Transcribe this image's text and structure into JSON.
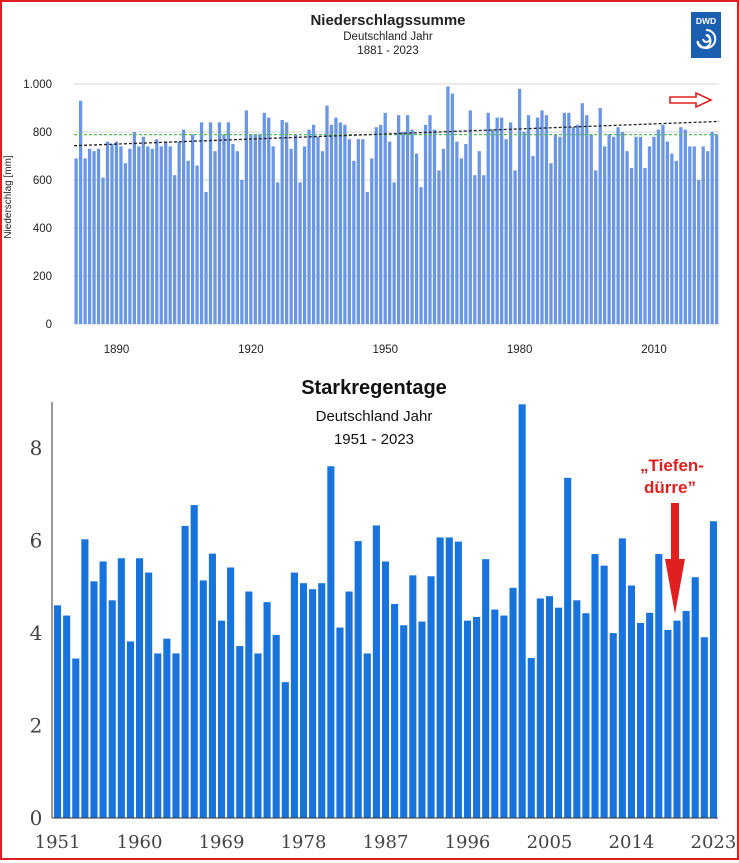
{
  "colors": {
    "top_bar": "#6a96e8",
    "bottom_bar": "#1874dc",
    "trend_dark": "#222222",
    "trend_green": "#5cb85c",
    "accent_red": "#e02020",
    "logo_blue": "#1b5fb0"
  },
  "logo_text": "DWD",
  "chart_data": [
    {
      "type": "bar",
      "title": "Niederschlagssumme",
      "subtitle": "Deutschland Jahr",
      "period": "1881 - 2023",
      "ylabel": "Niederschlag [mm]",
      "ylim": [
        0,
        1000
      ],
      "ytick_labels": [
        "0",
        "200",
        "400",
        "600",
        "800",
        "1.000"
      ],
      "ytick_values": [
        0,
        200,
        400,
        600,
        800,
        1000
      ],
      "xtick_values": [
        1890,
        1920,
        1950,
        1980,
        2010
      ],
      "xtick_labels": [
        "1890",
        "1920",
        "1950",
        "1980",
        "2010"
      ],
      "x_start": 1881,
      "values": [
        690,
        930,
        690,
        730,
        720,
        730,
        610,
        760,
        750,
        760,
        740,
        670,
        730,
        800,
        740,
        780,
        740,
        730,
        770,
        740,
        760,
        740,
        620,
        760,
        810,
        680,
        790,
        660,
        840,
        550,
        840,
        720,
        840,
        790,
        840,
        750,
        720,
        600,
        890,
        790,
        790,
        790,
        880,
        860,
        740,
        590,
        850,
        840,
        730,
        790,
        590,
        740,
        810,
        830,
        780,
        720,
        910,
        830,
        860,
        840,
        830,
        770,
        680,
        770,
        770,
        550,
        690,
        820,
        830,
        880,
        760,
        590,
        870,
        800,
        870,
        810,
        710,
        570,
        830,
        870,
        810,
        640,
        730,
        990,
        960,
        760,
        690,
        750,
        890,
        620,
        720,
        620,
        880,
        810,
        860,
        860,
        770,
        840,
        640,
        980,
        800,
        870,
        700,
        860,
        890,
        870,
        670,
        790,
        780,
        880,
        880,
        820,
        830,
        920,
        870,
        790,
        640,
        900,
        740,
        790,
        780,
        820,
        800,
        720,
        650,
        780,
        780,
        650,
        740,
        780,
        810,
        830,
        760,
        710,
        680,
        820,
        810,
        740,
        740,
        600,
        740,
        720,
        800,
        790
      ],
      "trend_dark": {
        "start_value": 743,
        "end_value": 844
      },
      "trend_green_value": 789
    },
    {
      "type": "bar",
      "title": "Starkregentage",
      "subtitle": "Deutschland Jahr",
      "period": "1951 - 2023",
      "ylim": [
        0,
        9
      ],
      "ytick_labels": [
        "0",
        "2",
        "4",
        "6",
        "8"
      ],
      "ytick_values": [
        0,
        2,
        4,
        6,
        8
      ],
      "xtick_values": [
        1951,
        1960,
        1969,
        1978,
        1987,
        1996,
        2005,
        2014,
        2023
      ],
      "xtick_labels": [
        "1951",
        "1960",
        "1969",
        "1978",
        "1987",
        "1996",
        "2005",
        "2014",
        "2023"
      ],
      "x_start": 1951,
      "values": [
        4.6,
        4.38,
        3.45,
        6.03,
        5.12,
        5.55,
        4.71,
        5.62,
        3.82,
        5.62,
        5.31,
        3.56,
        3.88,
        3.56,
        6.32,
        6.77,
        5.14,
        5.72,
        4.27,
        5.42,
        3.72,
        4.9,
        3.56,
        4.67,
        3.96,
        2.94,
        5.31,
        5.08,
        4.95,
        5.08,
        7.61,
        4.12,
        4.9,
        5.99,
        3.56,
        6.33,
        5.55,
        4.63,
        4.17,
        5.25,
        4.25,
        5.23,
        6.07,
        6.07,
        5.98,
        4.27,
        4.35,
        5.6,
        4.51,
        4.38,
        4.98,
        8.95,
        3.46,
        4.75,
        4.8,
        4.55,
        7.36,
        4.71,
        4.43,
        5.71,
        5.46,
        4.0,
        6.05,
        5.03,
        4.22,
        4.44,
        5.71,
        4.07,
        4.27,
        4.48,
        5.21,
        3.91,
        6.42
      ],
      "annotation": [
        "„Tiefen-",
        "dürre”"
      ]
    }
  ]
}
